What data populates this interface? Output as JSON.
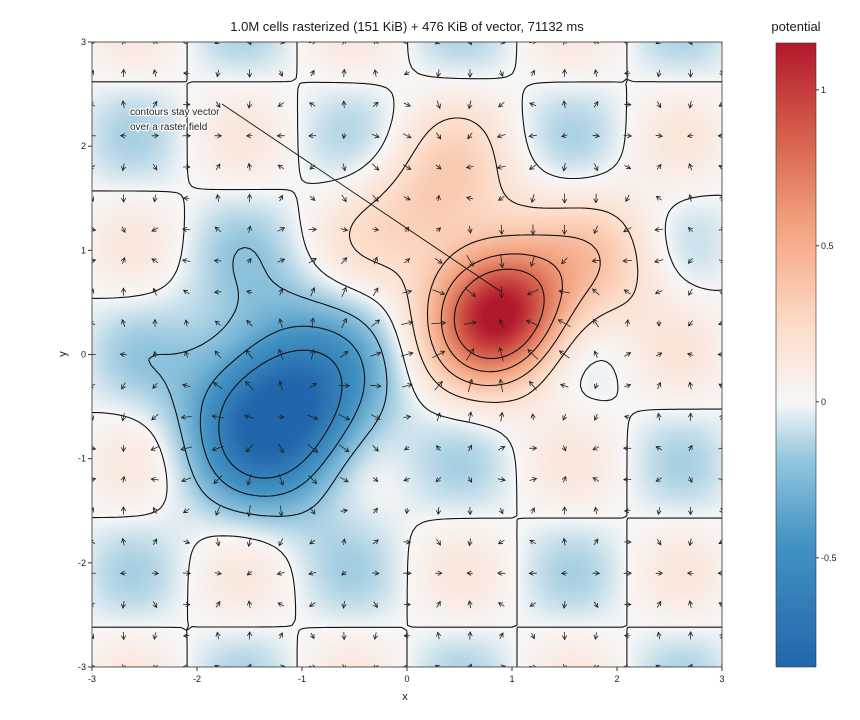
{
  "chart_data": {
    "type": "heatmap",
    "title": "1.0M cells rasterized (151 KiB) + 476 KiB of vector, 71132 ms",
    "xlabel": "x",
    "ylabel": "y",
    "xlim": [
      -3,
      3
    ],
    "ylim": [
      -3,
      3
    ],
    "x_ticks": [
      "-3",
      "-2",
      "-1",
      "0",
      "1",
      "2",
      "3"
    ],
    "y_ticks": [
      "-3",
      "-2",
      "-1",
      "0",
      "1",
      "2",
      "3"
    ],
    "colorbar": {
      "title": "potential",
      "range": [
        -0.85,
        1.15
      ],
      "ticks": [
        "-0.5",
        "0",
        "0.5",
        "1"
      ],
      "tick_values": [
        -0.5,
        0,
        0.5,
        1
      ],
      "colormap": "RdBu_r"
    },
    "field": {
      "components": [
        {
          "type": "gaussian",
          "center": [
            0.9,
            0.4
          ],
          "amplitude": 1.15,
          "sigma": 0.45
        },
        {
          "type": "gaussian",
          "center": [
            -1.2,
            -0.6
          ],
          "amplitude": -0.85,
          "sigma": 0.55
        },
        {
          "type": "gaussian",
          "center": [
            0.3,
            1.4
          ],
          "amplitude": 0.35,
          "sigma": 0.5
        },
        {
          "type": "gaussian",
          "center": [
            2.0,
            0.9
          ],
          "amplitude": 0.25,
          "sigma": 0.45
        },
        {
          "type": "gaussian",
          "center": [
            -1.3,
            0.0
          ],
          "amplitude": -0.2,
          "sigma": 0.6
        },
        {
          "type": "background",
          "expression": "0.15 * sin(3x) * cos(3y)"
        }
      ],
      "contour_levels": [
        -0.6,
        -0.4,
        -0.2,
        0.0,
        0.2,
        0.4,
        0.6,
        0.8
      ],
      "vector_field": "gradient (arrows point uphill)",
      "vector_grid_step": 0.3
    },
    "annotation": {
      "text_lines": [
        "contours stay vector",
        "over a raster field"
      ],
      "points_to": [
        0.9,
        0.6
      ]
    },
    "grid": false,
    "colors": {
      "low": "#2166ac",
      "mid": "#f7f7f7",
      "high": "#b2182b",
      "contour": "#111111",
      "arrow": "#222222"
    }
  }
}
